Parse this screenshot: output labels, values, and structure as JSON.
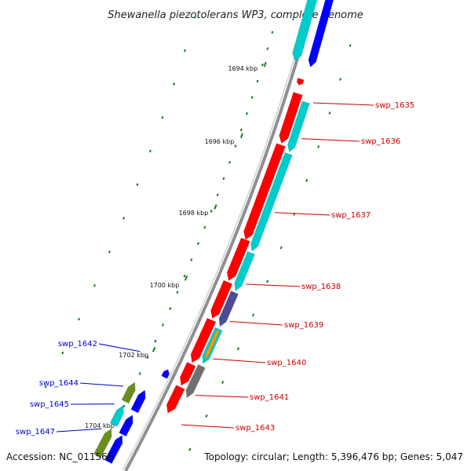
{
  "title": "Shewanella piezotolerans WP3, complete genome",
  "accession": "Accession: NC_011566",
  "summary": "Topology: circular; Length: 5,396,476 bp; Genes: 5,047",
  "colors": {
    "backbone": "#8f8f8f",
    "tick": "#1a7a1a",
    "forward_label": "#cc0000",
    "reverse_label": "#0000cc",
    "cds_red": "#ff0000",
    "cds_cyan": "#00cccc",
    "cds_blue": "#0000ff",
    "cds_slate": "#4b4b9a",
    "cds_orange": "#ff9900",
    "cds_gray": "#707070",
    "cds_olive": "#6b8e23"
  },
  "scale_labels": [
    "1694 kbp",
    "1696 kbp",
    "1698 kbp",
    "1700 kbp",
    "1702 kbp",
    "1704 kbp"
  ],
  "gene_labels": {
    "forward": [
      "swp_1635",
      "swp_1636",
      "swp_1637",
      "swp_1638",
      "swp_1639",
      "swp_1640",
      "swp_1641",
      "swp_1643"
    ],
    "reverse": [
      "swp_1642",
      "swp_1644",
      "swp_1645",
      "swp_1647"
    ]
  }
}
